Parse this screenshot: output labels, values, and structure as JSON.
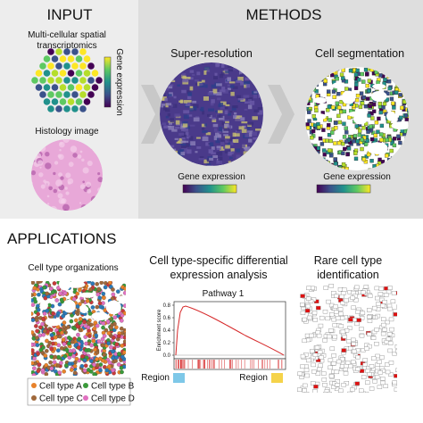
{
  "header": {
    "input": "INPUT",
    "methods": "METHODS"
  },
  "input": {
    "spatial_label": [
      "Multi-cellular spatial",
      "transcriptomics"
    ],
    "colorbar_label": "Gene expression",
    "histology_label": "Histology image"
  },
  "methods": {
    "super_resolution": {
      "title": "Super-resolution",
      "colorbar_label": "Gene expression"
    },
    "cell_segmentation": {
      "title": "Cell segmentation",
      "colorbar_label": "Gene expression"
    }
  },
  "applications": {
    "title": "APPLICATIONS",
    "cell_type_organizations": {
      "title": "Cell type organizations",
      "legend": [
        "Cell type A",
        "Cell type B",
        "Cell type C",
        "Cell type D"
      ]
    },
    "differential_expression": {
      "title": [
        "Cell type-specific differential",
        "expression analysis"
      ],
      "plot_title": "Pathway 1",
      "y_label": "Enrichment score",
      "y_ticks": [
        "0.0",
        "0.2",
        "0.4",
        "0.6",
        "0.8"
      ],
      "region_left": "Region",
      "region_right": "Region"
    },
    "rare_cell": {
      "title": [
        "Rare cell type",
        "identification"
      ]
    }
  }
}
